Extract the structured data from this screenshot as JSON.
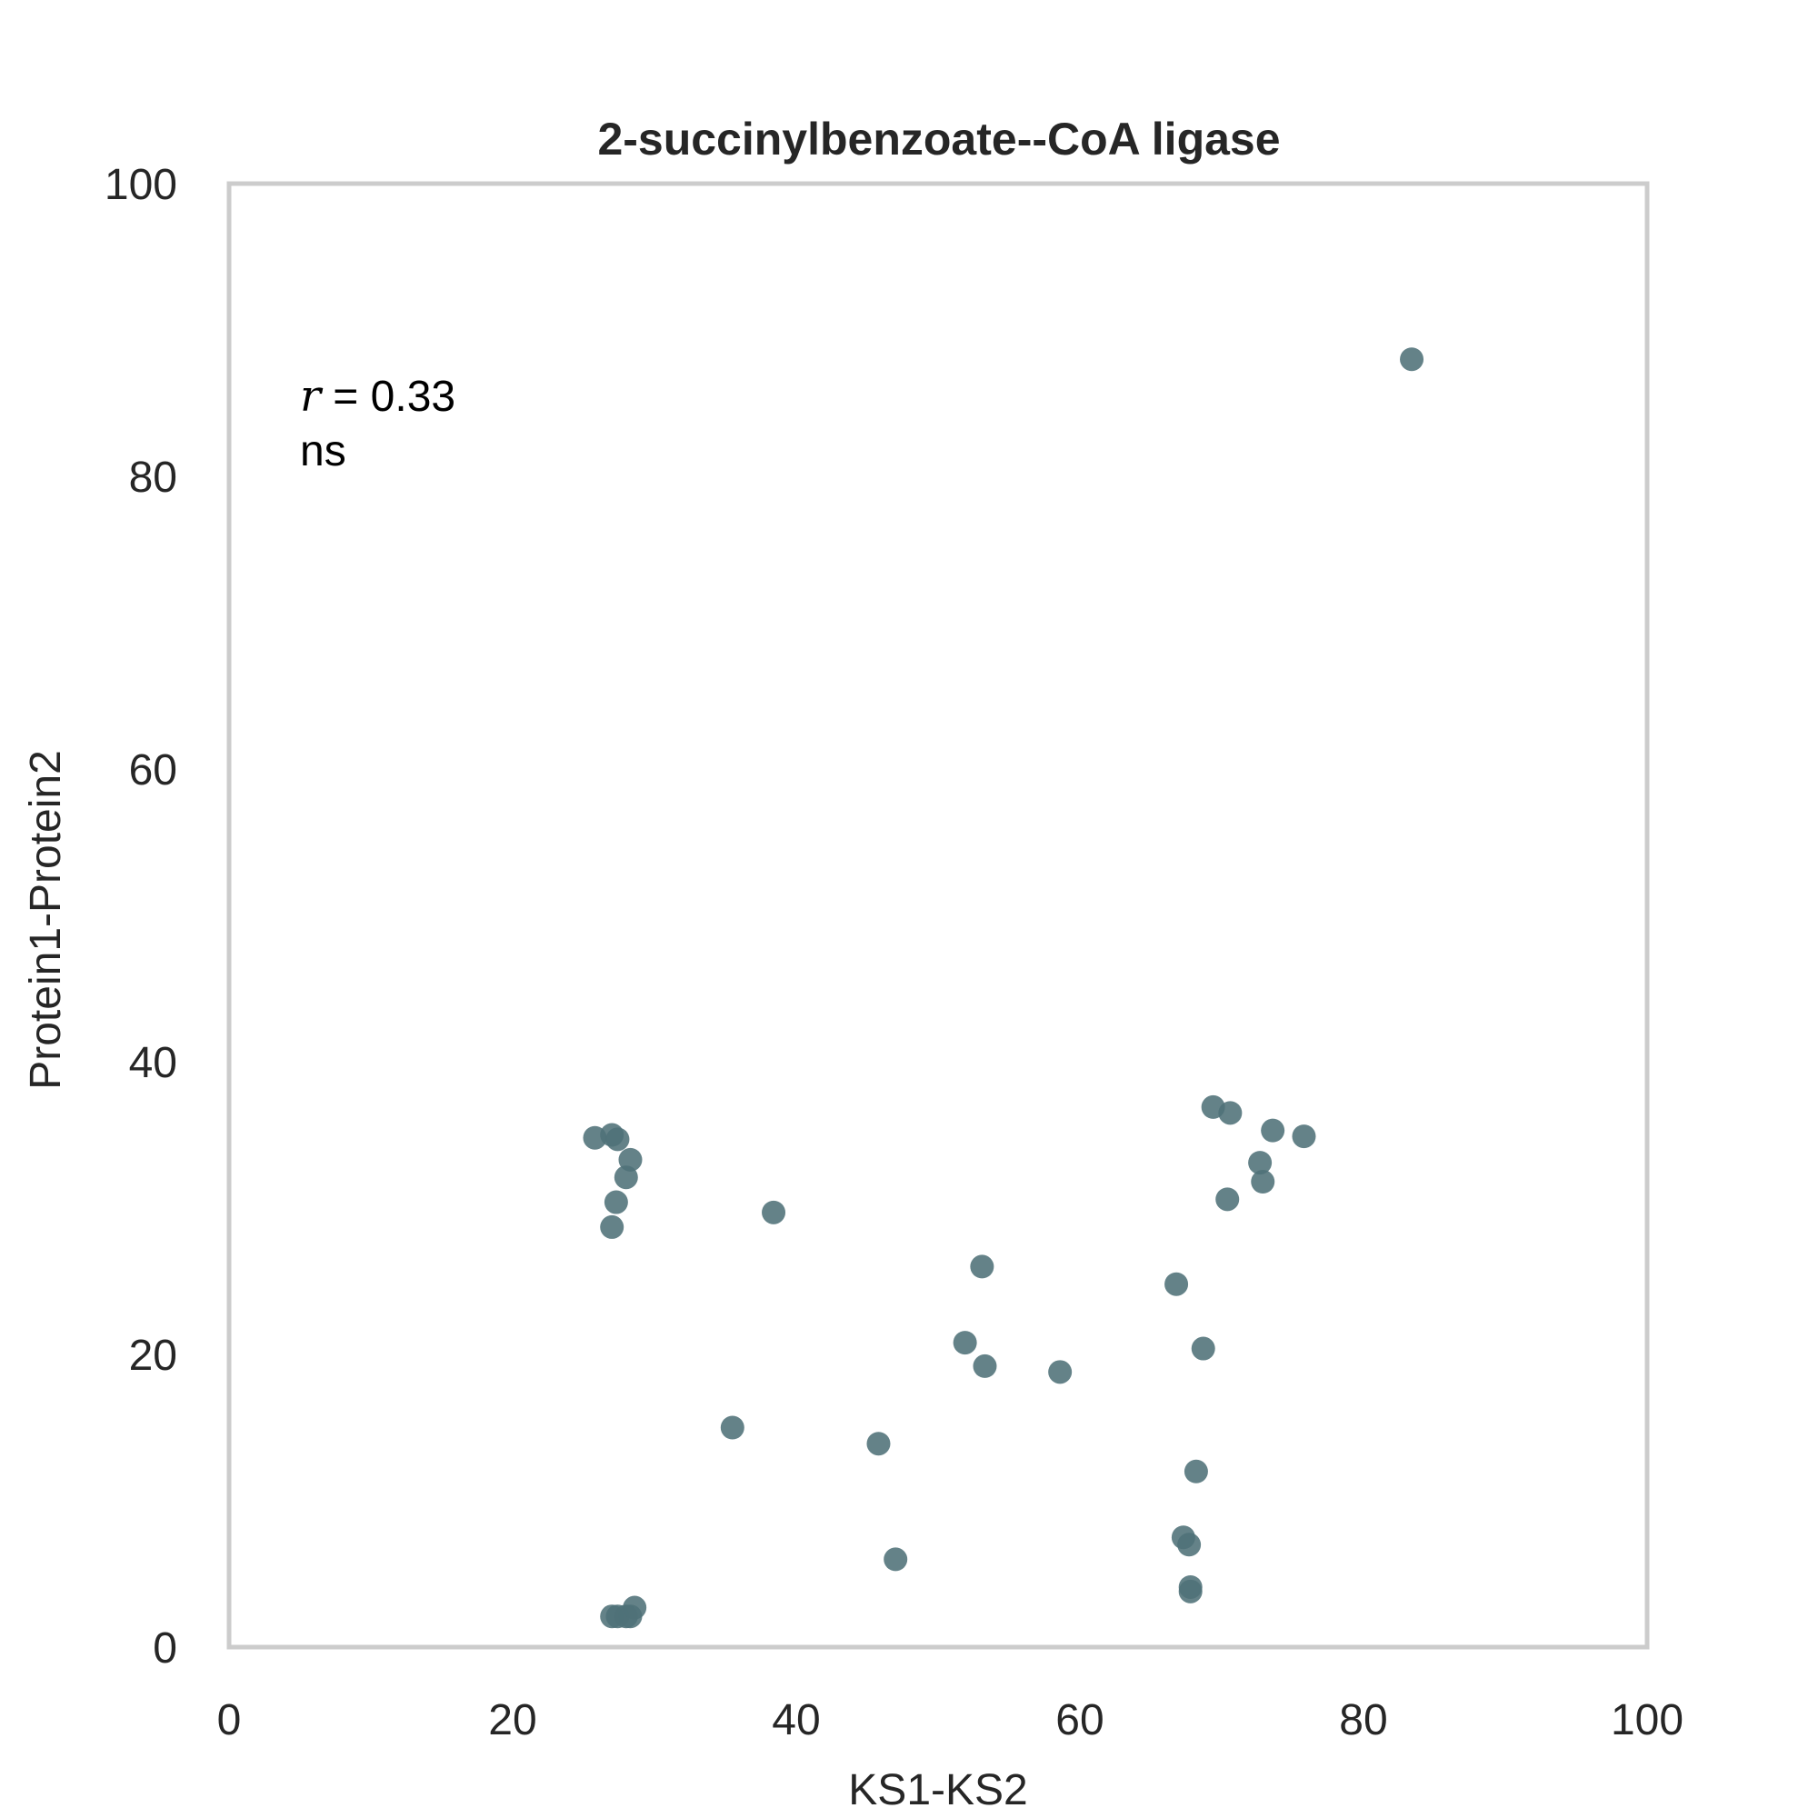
{
  "chart_data": {
    "type": "scatter",
    "title": "2-succinylbenzoate--CoA ligase",
    "xlabel": "KS1-KS2",
    "ylabel": "Protein1-Protein2",
    "xlim": [
      0,
      100
    ],
    "ylim": [
      0,
      100
    ],
    "xticks": [
      "0",
      "20",
      "40",
      "60",
      "80",
      "100"
    ],
    "yticks": [
      "0",
      "20",
      "40",
      "60",
      "80",
      "100"
    ],
    "grid": false,
    "marker_color": "#4f7178",
    "annotation": {
      "r_symbol": "r",
      "r_value": "= 0.33",
      "significance": "ns"
    },
    "points": [
      {
        "x": 25.8,
        "y": 34.8
      },
      {
        "x": 27.0,
        "y": 35.0
      },
      {
        "x": 27.4,
        "y": 34.7
      },
      {
        "x": 28.3,
        "y": 33.3
      },
      {
        "x": 28.0,
        "y": 32.1
      },
      {
        "x": 27.3,
        "y": 30.4
      },
      {
        "x": 27.0,
        "y": 28.7
      },
      {
        "x": 38.4,
        "y": 29.7
      },
      {
        "x": 35.5,
        "y": 15.0
      },
      {
        "x": 27.0,
        "y": 2.1
      },
      {
        "x": 27.4,
        "y": 2.1
      },
      {
        "x": 28.0,
        "y": 2.1
      },
      {
        "x": 28.3,
        "y": 2.1
      },
      {
        "x": 28.6,
        "y": 2.7
      },
      {
        "x": 45.8,
        "y": 13.9
      },
      {
        "x": 47.0,
        "y": 6.0
      },
      {
        "x": 53.1,
        "y": 26.0
      },
      {
        "x": 51.9,
        "y": 20.8
      },
      {
        "x": 53.3,
        "y": 19.2
      },
      {
        "x": 58.6,
        "y": 18.8
      },
      {
        "x": 66.8,
        "y": 24.8
      },
      {
        "x": 68.7,
        "y": 20.4
      },
      {
        "x": 68.2,
        "y": 12.0
      },
      {
        "x": 67.3,
        "y": 7.5
      },
      {
        "x": 67.7,
        "y": 7.0
      },
      {
        "x": 67.8,
        "y": 4.1
      },
      {
        "x": 67.8,
        "y": 3.8
      },
      {
        "x": 69.4,
        "y": 36.9
      },
      {
        "x": 70.6,
        "y": 36.5
      },
      {
        "x": 73.6,
        "y": 35.3
      },
      {
        "x": 75.8,
        "y": 34.9
      },
      {
        "x": 72.7,
        "y": 33.1
      },
      {
        "x": 72.9,
        "y": 31.8
      },
      {
        "x": 70.4,
        "y": 30.6
      },
      {
        "x": 83.4,
        "y": 88.0
      }
    ]
  }
}
